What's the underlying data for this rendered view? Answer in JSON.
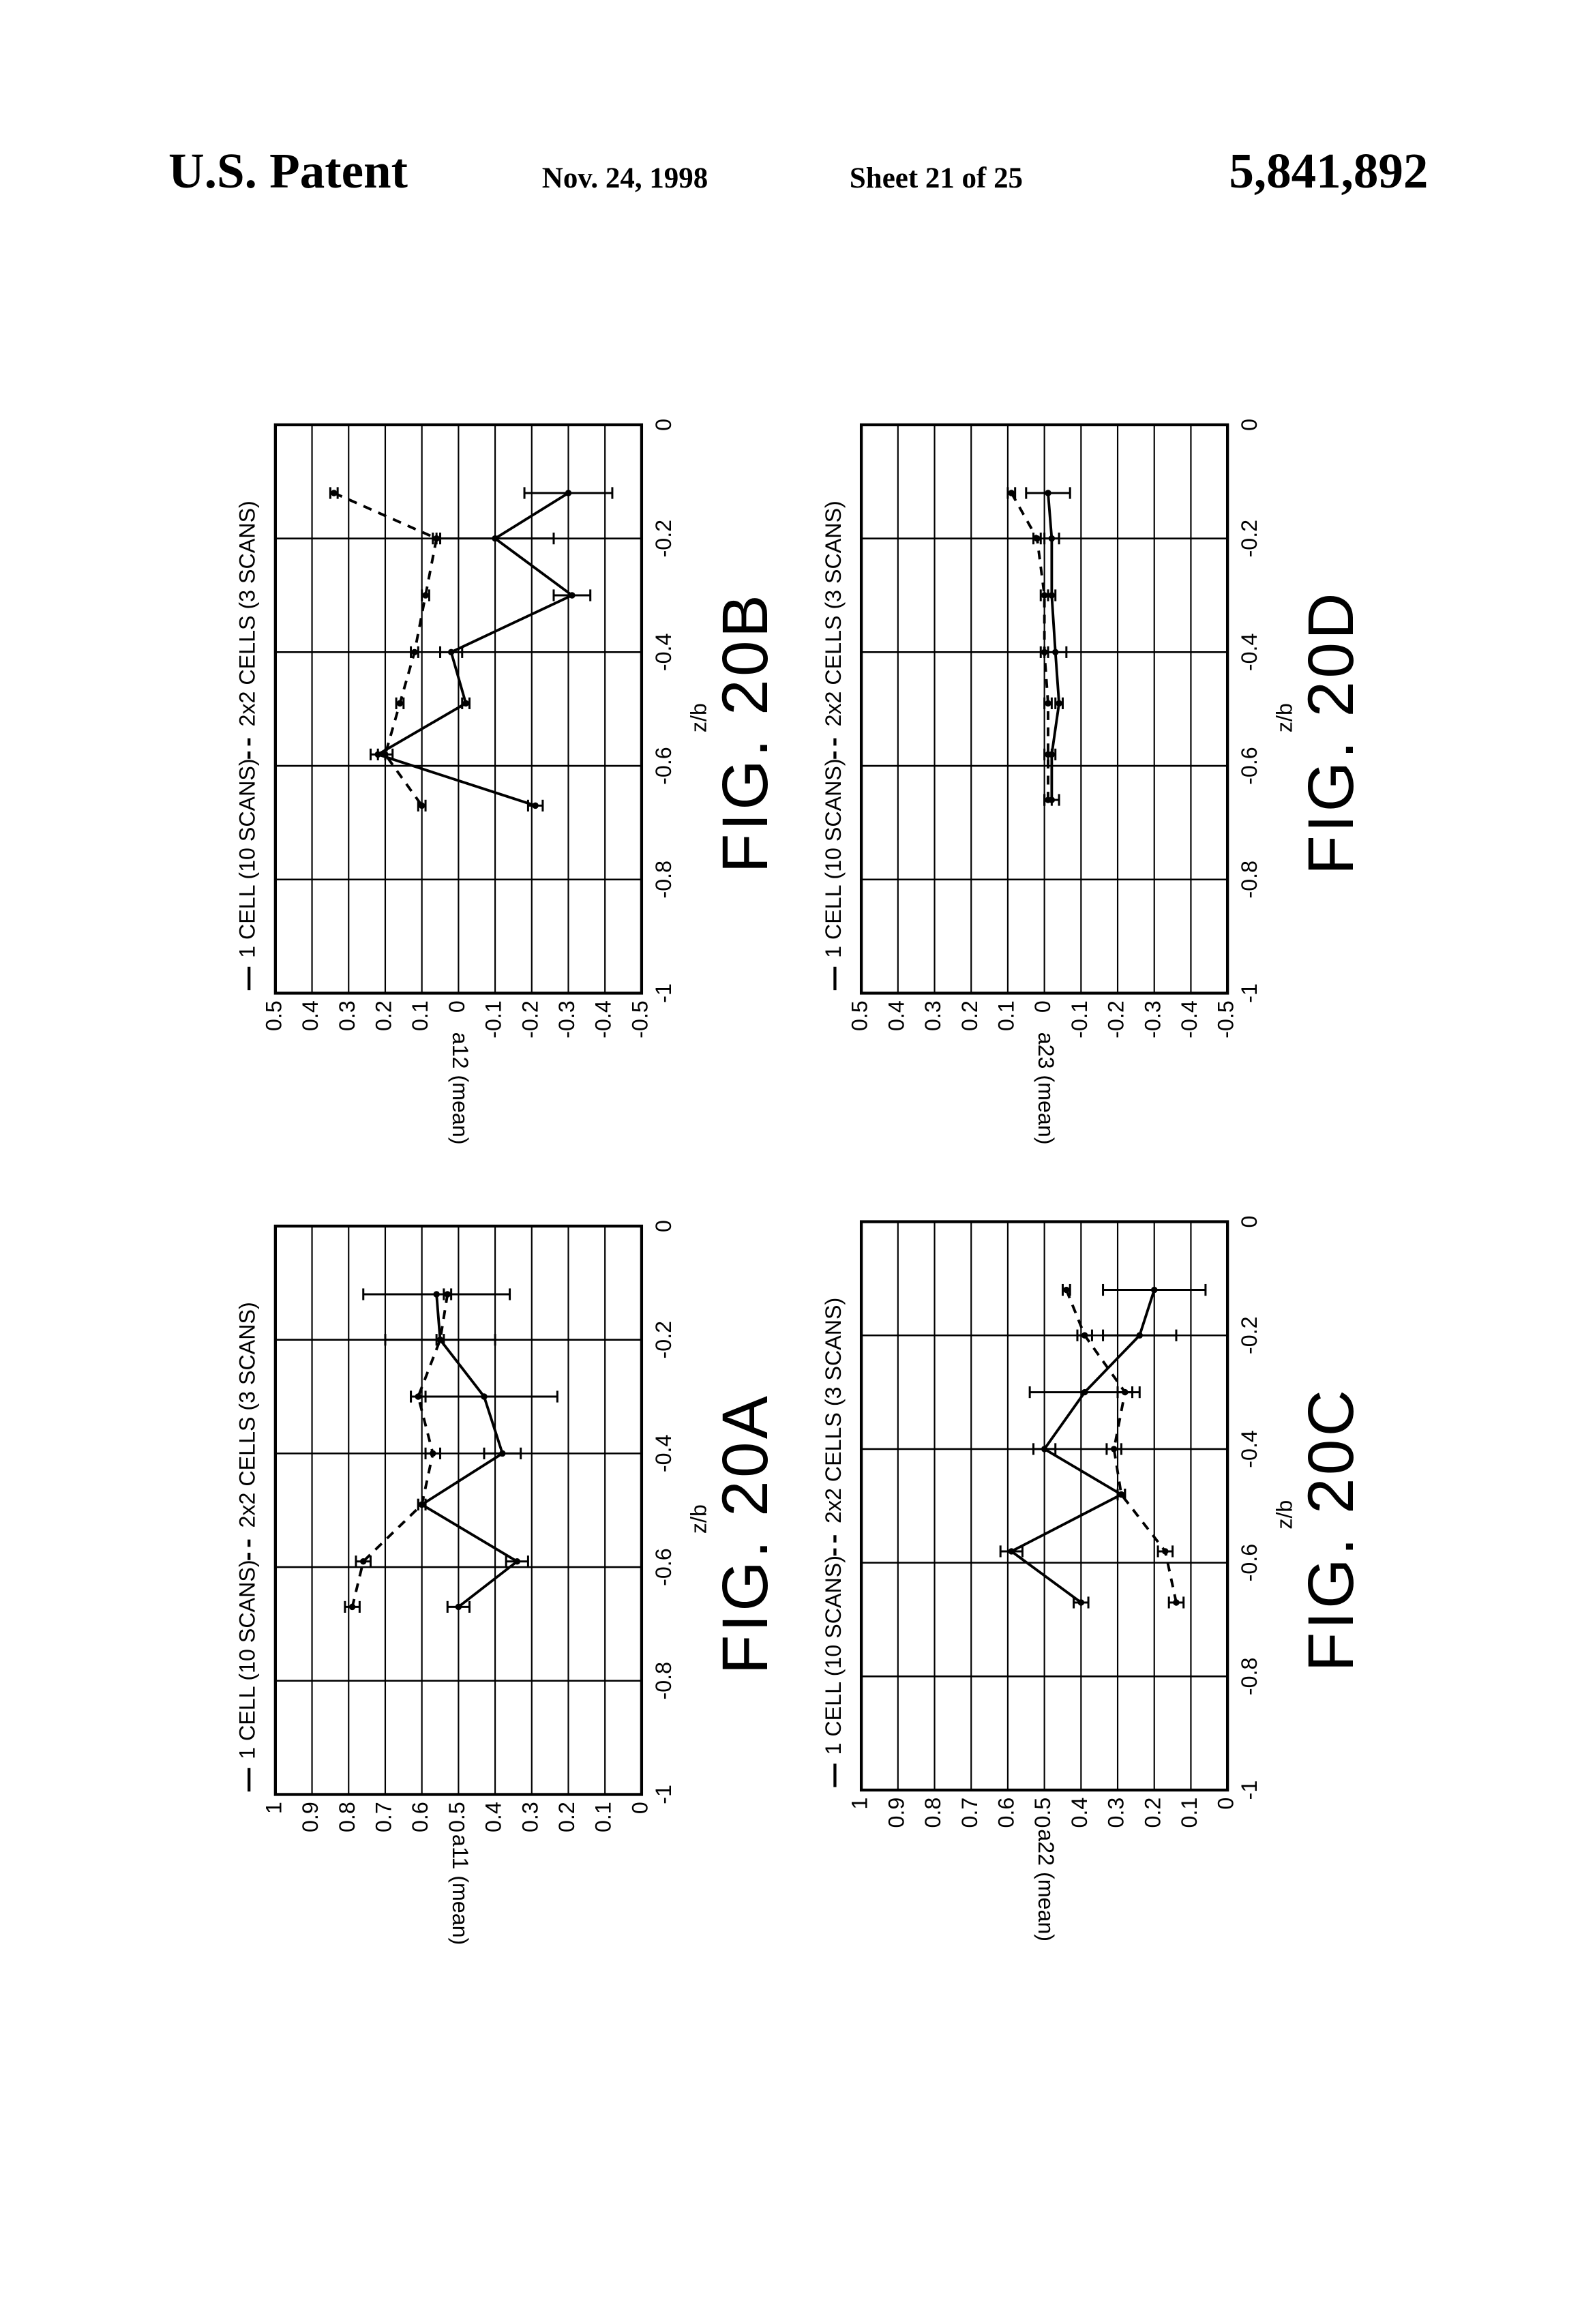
{
  "header": {
    "left": "U.S. Patent",
    "date": "Nov. 24, 1998",
    "sheet": "Sheet 21 of 25",
    "number": "5,841,892"
  },
  "chart_data": [
    {
      "type": "line",
      "title": "FIG. 20A",
      "xlabel": "z/b",
      "ylabel": "a11 (mean)",
      "x": [
        -0.12,
        -0.2,
        -0.3,
        -0.4,
        -0.49,
        -0.59,
        -0.67
      ],
      "xlim": [
        -1,
        0
      ],
      "xticks": [
        -1,
        -0.8,
        -0.6,
        -0.4,
        -0.2,
        0
      ],
      "ylim": [
        0,
        1
      ],
      "yticks": [
        0,
        0.1,
        0.2,
        0.3,
        0.4,
        0.5,
        0.6,
        0.7,
        0.8,
        0.9,
        1
      ],
      "grid": true,
      "series": [
        {
          "name": "1 CELL (10 SCANS)",
          "color": "#000000",
          "linestyle": "solid",
          "values": [
            0.56,
            0.55,
            0.43,
            0.38,
            0.6,
            0.34,
            0.5
          ],
          "errors": [
            0.2,
            0.15,
            0.2,
            0.05,
            0.01,
            0.03,
            0.03
          ]
        },
        {
          "name": "2x2 CELLS (3 SCANS)",
          "color": "#000000",
          "linestyle": "dashed",
          "values": [
            0.53,
            0.55,
            0.61,
            0.57,
            0.6,
            0.76,
            0.79
          ],
          "errors": [
            0.01,
            0.01,
            0.02,
            0.02,
            0.01,
            0.02,
            0.02
          ]
        }
      ]
    },
    {
      "type": "line",
      "title": "FIG. 20B",
      "xlabel": "z/b",
      "ylabel": "a12 (mean)",
      "x": [
        -0.12,
        -0.2,
        -0.3,
        -0.4,
        -0.49,
        -0.58,
        -0.67
      ],
      "xlim": [
        -1,
        0
      ],
      "xticks": [
        -1,
        -0.8,
        -0.6,
        -0.4,
        -0.2,
        0
      ],
      "ylim": [
        -0.5,
        0.5
      ],
      "yticks": [
        -0.5,
        -0.4,
        -0.3,
        -0.2,
        -0.1,
        0,
        0.1,
        0.2,
        0.3,
        0.4,
        0.5
      ],
      "grid": true,
      "series": [
        {
          "name": "1 CELL (10 SCANS)",
          "color": "#000000",
          "linestyle": "solid",
          "values": [
            -0.3,
            -0.1,
            -0.31,
            0.02,
            -0.02,
            0.22,
            -0.21
          ],
          "errors": [
            0.12,
            0.16,
            0.05,
            0.03,
            0.01,
            0.02,
            0.02
          ]
        },
        {
          "name": "2x2 CELLS (3 SCANS)",
          "color": "#000000",
          "linestyle": "dashed",
          "values": [
            0.34,
            0.06,
            0.09,
            0.12,
            0.16,
            0.2,
            0.1
          ],
          "errors": [
            0.01,
            0.01,
            0.01,
            0.01,
            0.01,
            0.02,
            0.01
          ]
        }
      ]
    },
    {
      "type": "line",
      "title": "FIG. 20C",
      "xlabel": "z/b",
      "ylabel": "a22 (mean)",
      "x": [
        -0.12,
        -0.2,
        -0.3,
        -0.4,
        -0.48,
        -0.58,
        -0.67
      ],
      "xlim": [
        -1,
        0
      ],
      "xticks": [
        -1,
        -0.8,
        -0.6,
        -0.4,
        -0.2,
        0
      ],
      "ylim": [
        0,
        1
      ],
      "yticks": [
        0,
        0.1,
        0.2,
        0.3,
        0.4,
        0.5,
        0.6,
        0.7,
        0.8,
        0.9,
        1
      ],
      "grid": true,
      "series": [
        {
          "name": "1 CELL (10 SCANS)",
          "color": "#000000",
          "linestyle": "solid",
          "values": [
            0.2,
            0.24,
            0.39,
            0.5,
            0.29,
            0.59,
            0.4
          ],
          "errors": [
            0.14,
            0.1,
            0.15,
            0.03,
            0.01,
            0.03,
            0.02
          ]
        },
        {
          "name": "2x2 CELLS (3 SCANS)",
          "color": "#000000",
          "linestyle": "dashed",
          "values": [
            0.44,
            0.39,
            0.28,
            0.31,
            0.29,
            0.17,
            0.14
          ],
          "errors": [
            0.01,
            0.02,
            0.02,
            0.02,
            0.01,
            0.02,
            0.02
          ]
        }
      ]
    },
    {
      "type": "line",
      "title": "FIG. 20D",
      "xlabel": "z/b",
      "ylabel": "a23 (mean)",
      "x": [
        -0.12,
        -0.2,
        -0.3,
        -0.4,
        -0.49,
        -0.58,
        -0.66
      ],
      "xlim": [
        -1,
        0
      ],
      "xticks": [
        -1,
        -0.8,
        -0.6,
        -0.4,
        -0.2,
        0
      ],
      "ylim": [
        -0.5,
        0.5
      ],
      "yticks": [
        -0.5,
        -0.4,
        -0.3,
        -0.2,
        -0.1,
        0,
        0.1,
        0.2,
        0.3,
        0.4,
        0.5
      ],
      "grid": true,
      "series": [
        {
          "name": "1 CELL (10 SCANS)",
          "color": "#000000",
          "linestyle": "solid",
          "values": [
            -0.01,
            -0.02,
            -0.02,
            -0.03,
            -0.04,
            -0.02,
            -0.02
          ],
          "errors": [
            0.06,
            0.02,
            0.01,
            0.03,
            0.01,
            0.01,
            0.02
          ]
        },
        {
          "name": "2x2 CELLS (3 SCANS)",
          "color": "#000000",
          "linestyle": "dashed",
          "values": [
            0.09,
            0.02,
            0.0,
            0.0,
            -0.01,
            -0.01,
            -0.01
          ],
          "errors": [
            0.01,
            0.01,
            0.01,
            0.01,
            0.01,
            0.01,
            0.01
          ]
        }
      ]
    }
  ]
}
